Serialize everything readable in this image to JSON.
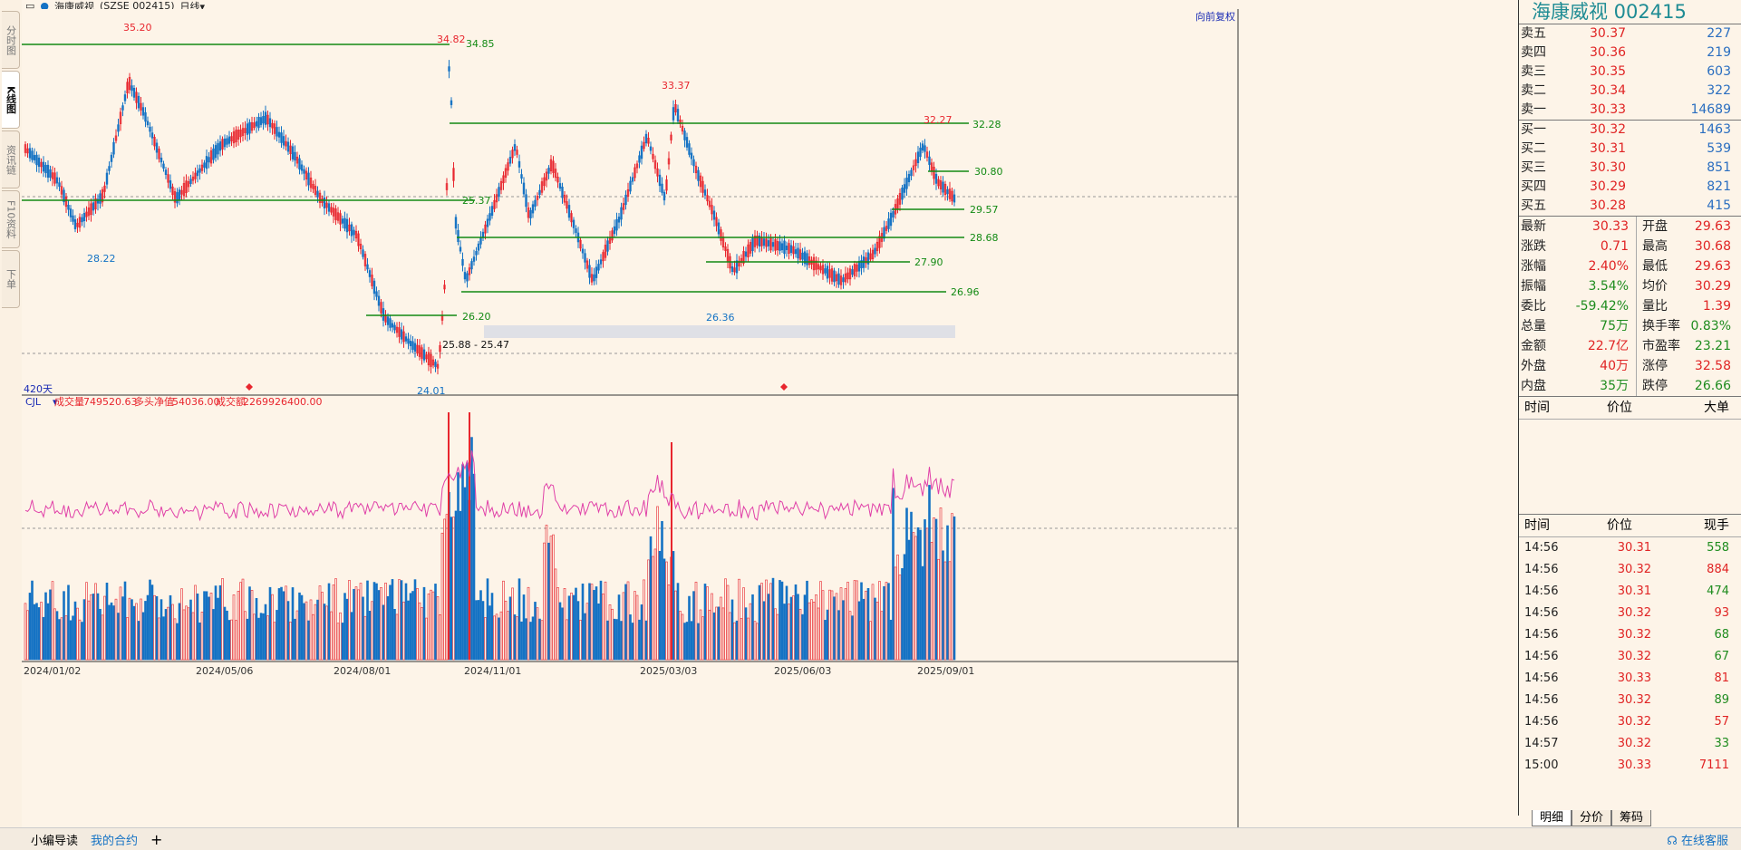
{
  "toolbar": {
    "stock_name": "海康威视",
    "stock_code": "(SZSE 002415)",
    "period": "日线"
  },
  "left_tabs": [
    "分时图",
    "K线图",
    "资讯链",
    "F10资料",
    "下单"
  ],
  "chart": {
    "restore_label": "向前复权",
    "days_label": "420天",
    "range_label": "25.88 - 25.47",
    "high_labels": [
      {
        "text": "35.20",
        "color": "red"
      },
      {
        "text": "34.82",
        "color": "red"
      },
      {
        "text": "33.37",
        "color": "red"
      },
      {
        "text": "32.27",
        "color": "red"
      }
    ],
    "low_labels": [
      {
        "text": "28.22"
      },
      {
        "text": "24.01"
      },
      {
        "text": "26.36"
      }
    ],
    "level_labels": [
      "34.85",
      "32.28",
      "30.80",
      "29.57",
      "28.68",
      "27.90",
      "26.96",
      "26.20",
      "25.37"
    ],
    "indicator": {
      "name": "CJL",
      "vol_label": "成交量",
      "vol_value": "749520.63",
      "net_label": "多头净值",
      "net_value": "54036.00",
      "amount_label": "成交额",
      "amount_value": "2269926400.00"
    },
    "x_ticks": [
      "2024/01/02",
      "2024/05/06",
      "2024/08/01",
      "2024/11/01",
      "2025/03/03",
      "2025/06/03",
      "2025/09/01"
    ]
  },
  "right": {
    "title": "海康威视  002415",
    "asks": [
      {
        "label": "卖五",
        "price": "30.37",
        "vol": "227"
      },
      {
        "label": "卖四",
        "price": "30.36",
        "vol": "219"
      },
      {
        "label": "卖三",
        "price": "30.35",
        "vol": "603"
      },
      {
        "label": "卖二",
        "price": "30.34",
        "vol": "322"
      },
      {
        "label": "卖一",
        "price": "30.33",
        "vol": "14689"
      }
    ],
    "bids": [
      {
        "label": "买一",
        "price": "30.32",
        "vol": "1463"
      },
      {
        "label": "买二",
        "price": "30.31",
        "vol": "539"
      },
      {
        "label": "买三",
        "price": "30.30",
        "vol": "851"
      },
      {
        "label": "买四",
        "price": "30.29",
        "vol": "821"
      },
      {
        "label": "买五",
        "price": "30.28",
        "vol": "415"
      }
    ],
    "quotes": [
      {
        "k": "最新",
        "v": "30.33",
        "c": "red",
        "k2": "开盘",
        "v2": "29.63",
        "c2": "red"
      },
      {
        "k": "涨跌",
        "v": "0.71",
        "c": "red",
        "k2": "最高",
        "v2": "30.68",
        "c2": "red"
      },
      {
        "k": "涨幅",
        "v": "2.40%",
        "c": "red",
        "k2": "最低",
        "v2": "29.63",
        "c2": "red"
      },
      {
        "k": "振幅",
        "v": "3.54%",
        "c": "green",
        "k2": "均价",
        "v2": "30.29",
        "c2": "red"
      },
      {
        "k": "委比",
        "v": "-59.42%",
        "c": "green",
        "k2": "量比",
        "v2": "1.39",
        "c2": "red"
      },
      {
        "k": "总量",
        "v": "75万",
        "c": "green",
        "k2": "换手率",
        "v2": "0.83%",
        "c2": "green"
      },
      {
        "k": "金额",
        "v": "22.7亿",
        "c": "red",
        "k2": "市盈率",
        "v2": "23.21",
        "c2": "green"
      },
      {
        "k": "外盘",
        "v": "40万",
        "c": "red",
        "k2": "涨停",
        "v2": "32.58",
        "c2": "red"
      },
      {
        "k": "内盘",
        "v": "35万",
        "c": "green",
        "k2": "跌停",
        "v2": "26.66",
        "c2": "green"
      }
    ],
    "head1": {
      "a": "时间",
      "b": "价位",
      "c": "大单"
    },
    "head2": {
      "a": "时间",
      "b": "价位",
      "c": "现手"
    },
    "ticks": [
      {
        "t": "14:56",
        "p": "30.31",
        "v": "558",
        "c": "green"
      },
      {
        "t": "14:56",
        "p": "30.32",
        "v": "884",
        "c": "red"
      },
      {
        "t": "14:56",
        "p": "30.31",
        "v": "474",
        "c": "green"
      },
      {
        "t": "14:56",
        "p": "30.32",
        "v": "93",
        "c": "red"
      },
      {
        "t": "14:56",
        "p": "30.32",
        "v": "68",
        "c": "green"
      },
      {
        "t": "14:56",
        "p": "30.32",
        "v": "67",
        "c": "green"
      },
      {
        "t": "14:56",
        "p": "30.33",
        "v": "81",
        "c": "red"
      },
      {
        "t": "14:56",
        "p": "30.32",
        "v": "89",
        "c": "green"
      },
      {
        "t": "14:56",
        "p": "30.32",
        "v": "57",
        "c": "red"
      },
      {
        "t": "14:57",
        "p": "30.32",
        "v": "33",
        "c": "green"
      },
      {
        "t": "15:00",
        "p": "30.33",
        "v": "7111",
        "c": "red"
      }
    ],
    "tabs": [
      "明细",
      "分价",
      "筹码"
    ]
  },
  "bottom": {
    "item1": "小编导读",
    "item2": "我的合约",
    "add": "+",
    "service": "在线客服"
  },
  "colors": {
    "up": "#e8262e",
    "down": "#1472c4",
    "level": "#138a13",
    "vol_line": "#e040a8"
  }
}
